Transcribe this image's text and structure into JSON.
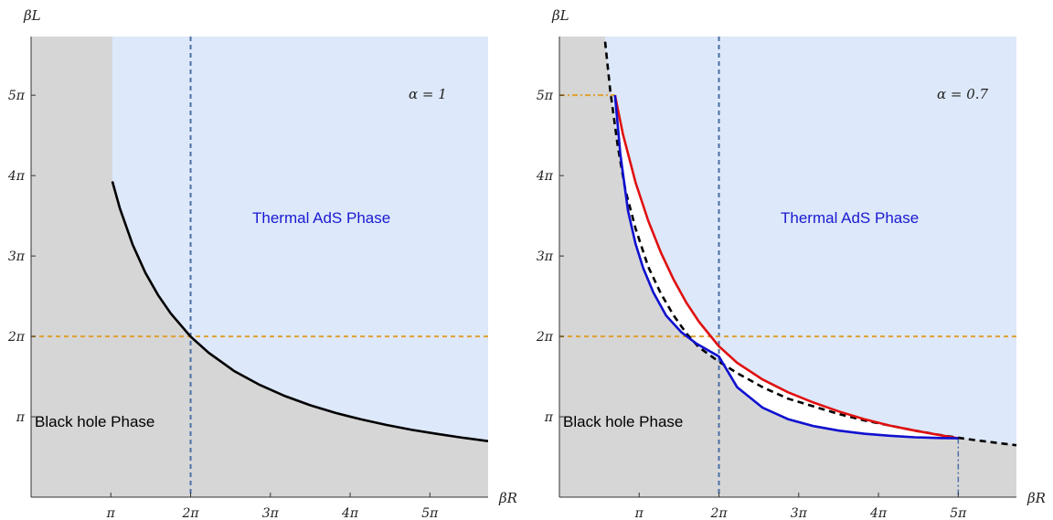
{
  "chart_data": [
    {
      "type": "line",
      "xlabel": "βR",
      "ylabel": "βL",
      "xlim": [
        0,
        18.0
      ],
      "ylim": [
        0,
        18.0
      ],
      "xticks": [
        {
          "v": 3.14159,
          "label": "π"
        },
        {
          "v": 6.28319,
          "label": "2π"
        },
        {
          "v": 9.42478,
          "label": "3π"
        },
        {
          "v": 12.56637,
          "label": "4π"
        },
        {
          "v": 15.70796,
          "label": "5π"
        }
      ],
      "yticks": [
        {
          "v": 3.14159,
          "label": "π"
        },
        {
          "v": 6.28319,
          "label": "2π"
        },
        {
          "v": 9.42478,
          "label": "3π"
        },
        {
          "v": 12.56637,
          "label": "4π"
        },
        {
          "v": 15.70796,
          "label": "5π"
        }
      ],
      "annotation": "α = 1",
      "region_labels": {
        "thermal": "Thermal AdS Phase",
        "black_hole": "Black hole Phase"
      },
      "colors": {
        "thermal_region": "#dde8fa",
        "black_hole_region": "#d6d6d6",
        "boundary": "#000000",
        "vertical_guide": "#4a6fa5",
        "horizontal_guide": "#e0a030",
        "thermal_text": "#1a1ad0"
      },
      "series": [
        {
          "style": "solid",
          "color": "#000000",
          "x": [
            3.2,
            3.5,
            4.0,
            4.5,
            5.0,
            5.5,
            6.28,
            7.0,
            8.0,
            9.0,
            10.0,
            11.0,
            12.0,
            13.0,
            14.0,
            15.0,
            16.0,
            17.0,
            18.0
          ],
          "y": [
            12.34,
            11.28,
            9.87,
            8.77,
            7.9,
            7.18,
            6.28,
            5.64,
            4.93,
            4.39,
            3.95,
            3.59,
            3.29,
            3.04,
            2.82,
            2.63,
            2.47,
            2.32,
            2.19
          ]
        }
      ],
      "guides": {
        "vertical_x": 6.28319,
        "horizontal_y": 6.28319
      }
    },
    {
      "type": "line",
      "xlabel": "βR",
      "ylabel": "βL",
      "xlim": [
        0,
        18.0
      ],
      "ylim": [
        0,
        18.0
      ],
      "xticks": [
        {
          "v": 3.14159,
          "label": "π"
        },
        {
          "v": 6.28319,
          "label": "2π"
        },
        {
          "v": 9.42478,
          "label": "3π"
        },
        {
          "v": 12.56637,
          "label": "4π"
        },
        {
          "v": 15.70796,
          "label": "5π"
        }
      ],
      "yticks": [
        {
          "v": 3.14159,
          "label": "π"
        },
        {
          "v": 6.28319,
          "label": "2π"
        },
        {
          "v": 9.42478,
          "label": "3π"
        },
        {
          "v": 12.56637,
          "label": "4π"
        },
        {
          "v": 15.70796,
          "label": "5π"
        }
      ],
      "annotation": "α = 0.7",
      "region_labels": {
        "thermal": "Thermal AdS Phase",
        "black_hole": "Black hole Phase"
      },
      "colors": {
        "thermal_region": "#dde8fa",
        "black_hole_region": "#d6d6d6",
        "between_region": "#ffffff",
        "upper_curve": "#e01010",
        "lower_curve": "#1010d0",
        "dashed_curve": "#000000",
        "vertical_guide": "#4a6fa5",
        "horizontal_guide": "#e0a030",
        "thermal_text": "#1a1ad0"
      },
      "series": [
        {
          "style": "dashed",
          "color": "#000000",
          "x": [
            1.8,
            2.0,
            2.3,
            2.6,
            3.0,
            3.5,
            4.0,
            4.5,
            5.0,
            5.5,
            6.28,
            7.0,
            8.0,
            9.0,
            10.0,
            11.0,
            12.0,
            13.0,
            14.0,
            15.0,
            16.0,
            17.0,
            18.0
          ],
          "y": [
            17.8,
            15.9,
            13.7,
            12.0,
            10.5,
            9.0,
            7.95,
            7.1,
            6.4,
            5.85,
            5.3,
            4.85,
            4.3,
            3.85,
            3.55,
            3.25,
            3.0,
            2.8,
            2.6,
            2.43,
            2.28,
            2.15,
            2.03
          ]
        },
        {
          "style": "solid",
          "color": "#e01010",
          "x": [
            2.19,
            2.5,
            3.0,
            3.5,
            4.0,
            4.5,
            5.0,
            5.5,
            6.28,
            7.0,
            8.0,
            9.0,
            10.0,
            11.0,
            12.0,
            13.0,
            14.0,
            15.0,
            15.71
          ],
          "y": [
            15.71,
            14.2,
            12.3,
            10.8,
            9.55,
            8.5,
            7.6,
            6.85,
            5.9,
            5.25,
            4.6,
            4.1,
            3.7,
            3.35,
            3.05,
            2.8,
            2.6,
            2.42,
            2.3
          ]
        },
        {
          "style": "solid",
          "color": "#1010d0",
          "x": [
            2.19,
            2.4,
            2.7,
            3.0,
            3.3,
            3.7,
            4.2,
            4.8,
            5.4,
            6.28,
            7.0,
            8.0,
            9.0,
            10.0,
            11.0,
            12.0,
            13.0,
            14.0,
            15.0,
            15.71
          ],
          "y": [
            15.71,
            13.4,
            11.2,
            9.9,
            8.95,
            8.0,
            7.1,
            6.45,
            6.0,
            5.5,
            4.3,
            3.5,
            3.05,
            2.78,
            2.6,
            2.48,
            2.4,
            2.34,
            2.31,
            2.3
          ]
        }
      ],
      "guides": {
        "vertical_x": 6.28319,
        "horizontal_y": 6.28319,
        "orange_dashdot_y": 15.70796,
        "blue_dashdot_x": 15.70796
      }
    }
  ]
}
